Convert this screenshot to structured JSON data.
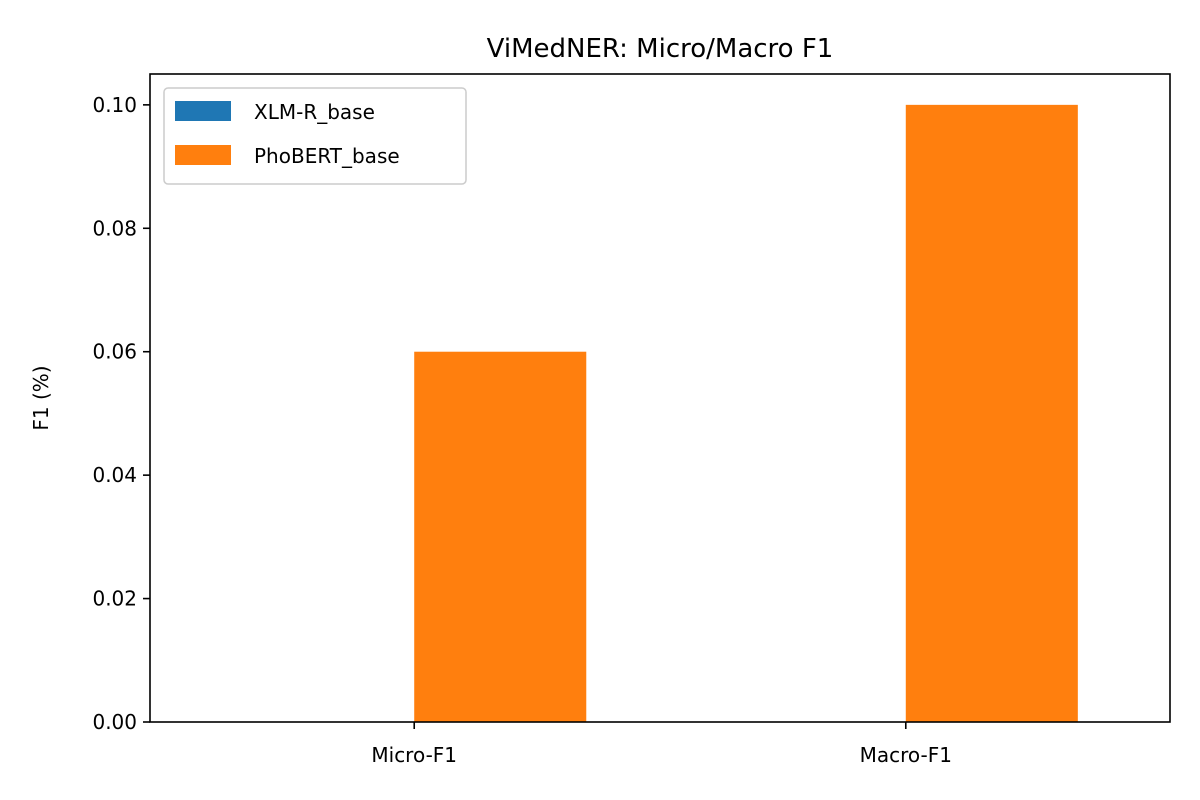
{
  "chart_data": {
    "type": "bar",
    "title": "ViMedNER: Micro/Macro F1",
    "xlabel": "",
    "ylabel": "F1 (%)",
    "categories": [
      "Micro-F1",
      "Macro-F1"
    ],
    "series": [
      {
        "name": "XLM-R_base",
        "values": [
          0,
          0
        ],
        "color": "#1f77b4"
      },
      {
        "name": "PhoBERT_base",
        "values": [
          0.06,
          0.1
        ],
        "color": "#ff7f0e"
      }
    ],
    "ylim": [
      0,
      0.105
    ],
    "yticks": [
      0.0,
      0.02,
      0.04,
      0.06,
      0.08,
      0.1
    ],
    "ytick_labels": [
      "0.00",
      "0.02",
      "0.04",
      "0.06",
      "0.08",
      "0.10"
    ],
    "grid": false,
    "legend_position": "top-left"
  }
}
